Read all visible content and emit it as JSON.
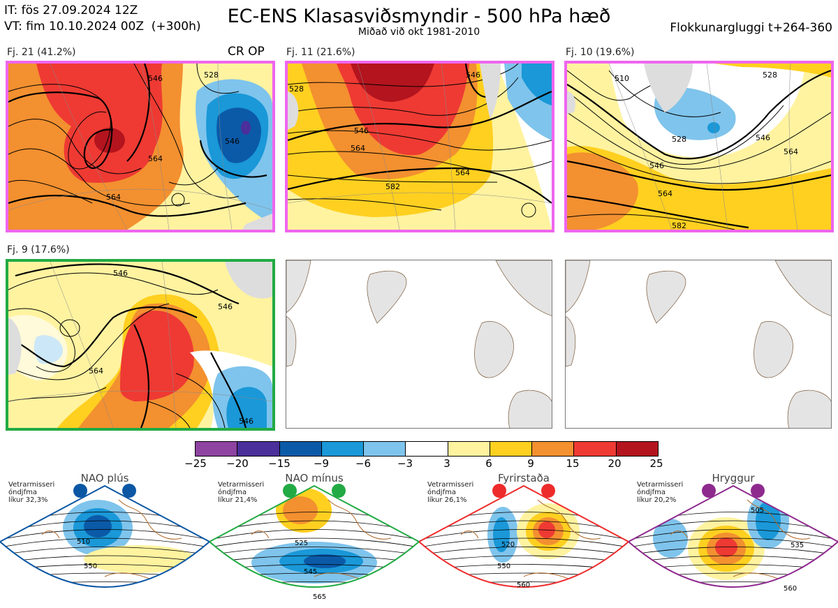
{
  "header": {
    "it_line": "IT: fös 27.09.2024 12Z",
    "vt_line": "VT: fim 10.10.2024 00Z  (+300h)",
    "title": "EC-ENS Klasasviðsmyndir - 500 hPa hæð",
    "subtitle": "Miðað við okt 1981-2010",
    "window": "Flokkunargluggi t+264-360"
  },
  "clusters": [
    {
      "label": "Fj. 21 (41.2%)",
      "border_color": "#ee66ee",
      "tag": "CR OP",
      "contours": [
        "546",
        "528",
        "546",
        "564",
        "564"
      ]
    },
    {
      "label": "Fj. 11 (21.6%)",
      "border_color": "#ee66ee",
      "contours": [
        "528",
        "546",
        "564",
        "564",
        "582",
        "546"
      ]
    },
    {
      "label": "Fj. 10 (19.6%)",
      "border_color": "#ee66ee",
      "contours": [
        "510",
        "528",
        "528",
        "546",
        "546",
        "564",
        "564",
        "582"
      ]
    },
    {
      "label": "Fj. 9 (17.6%)",
      "border_color": "#22aa44",
      "contours": [
        "546",
        "546",
        "564",
        "546"
      ]
    }
  ],
  "colorbar": {
    "ticks": [
      "−25",
      "−20",
      "−15",
      "−9",
      "−6",
      "−3",
      "3",
      "6",
      "9",
      "15",
      "20",
      "25"
    ],
    "colors": [
      "#8e44a0",
      "#4b2f9a",
      "#0b5aa8",
      "#1a98d8",
      "#7fc4ec",
      "#ffffff",
      "#fff3a0",
      "#ffd020",
      "#f39030",
      "#ee3a33",
      "#b3141e"
    ]
  },
  "regimes": [
    {
      "name": "NAO plús",
      "info1": "Vetrarmisseri",
      "info2": "óndjfma",
      "info3": "líkur 32,3%",
      "color": "#0b57a4",
      "labels": [
        "510",
        "550"
      ]
    },
    {
      "name": "NAO mínus",
      "info1": "Vetrarmisseri",
      "info2": "óndjfma",
      "info3": "líkur 21,4%",
      "color": "#22aa44",
      "labels": [
        "525",
        "545",
        "565"
      ]
    },
    {
      "name": "Fyrirstaða",
      "info1": "Vetrarmisseri",
      "info2": "óndjfma",
      "info3": "líkur 26,1%",
      "color": "#ee2b2b",
      "labels": [
        "520",
        "550",
        "560"
      ]
    },
    {
      "name": "Hryggur",
      "info1": "Vetrarmisseri",
      "info2": "óndjfma",
      "info3": "líkur 20,2%",
      "color": "#8e2a8e",
      "labels": [
        "505",
        "535",
        "560"
      ]
    }
  ]
}
